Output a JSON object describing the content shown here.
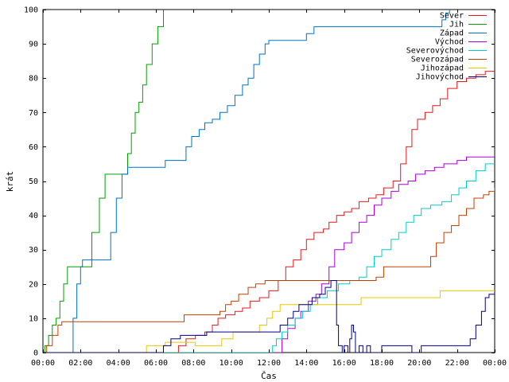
{
  "chart_data": {
    "type": "line",
    "xlabel": "Čas",
    "ylabel": "krát",
    "xlim": [
      0,
      24
    ],
    "ylim": [
      0,
      100
    ],
    "x_ticks": [
      {
        "value": 0,
        "label": "00:00"
      },
      {
        "value": 2,
        "label": "02:00"
      },
      {
        "value": 4,
        "label": "04:00"
      },
      {
        "value": 6,
        "label": "06:00"
      },
      {
        "value": 8,
        "label": "08:00"
      },
      {
        "value": 10,
        "label": "10:00"
      },
      {
        "value": 12,
        "label": "12:00"
      },
      {
        "value": 14,
        "label": "14:00"
      },
      {
        "value": 16,
        "label": "16:00"
      },
      {
        "value": 18,
        "label": "18:00"
      },
      {
        "value": 20,
        "label": "20:00"
      },
      {
        "value": 22,
        "label": "22:00"
      },
      {
        "value": 24,
        "label": "00:00"
      }
    ],
    "y_ticks": [
      0,
      10,
      20,
      30,
      40,
      50,
      60,
      70,
      80,
      90,
      100
    ],
    "grid": false,
    "legend_position": "top-right",
    "series": [
      {
        "name": "Sever",
        "color": "#e41a1c",
        "points": [
          [
            0,
            0
          ],
          [
            6.9,
            0
          ],
          [
            7.2,
            2
          ],
          [
            7.6,
            4
          ],
          [
            8.1,
            5
          ],
          [
            8.6,
            6
          ],
          [
            9.0,
            8
          ],
          [
            9.3,
            10
          ],
          [
            9.7,
            11
          ],
          [
            10.2,
            12
          ],
          [
            10.6,
            13
          ],
          [
            11.0,
            15
          ],
          [
            11.5,
            16
          ],
          [
            12.0,
            18
          ],
          [
            12.5,
            21
          ],
          [
            12.9,
            25
          ],
          [
            13.3,
            27
          ],
          [
            13.7,
            30
          ],
          [
            14.0,
            33
          ],
          [
            14.4,
            35
          ],
          [
            14.9,
            36
          ],
          [
            15.2,
            38
          ],
          [
            15.6,
            40
          ],
          [
            16.0,
            41
          ],
          [
            16.4,
            42
          ],
          [
            16.8,
            44
          ],
          [
            17.3,
            45
          ],
          [
            17.7,
            46
          ],
          [
            18.1,
            48
          ],
          [
            18.6,
            50
          ],
          [
            19.0,
            55
          ],
          [
            19.3,
            60
          ],
          [
            19.6,
            65
          ],
          [
            19.9,
            68
          ],
          [
            20.3,
            70
          ],
          [
            20.7,
            72
          ],
          [
            21.1,
            74
          ],
          [
            21.5,
            77
          ],
          [
            22.0,
            79
          ],
          [
            22.5,
            80
          ],
          [
            23.0,
            81
          ],
          [
            23.5,
            82
          ],
          [
            24.0,
            82
          ]
        ]
      },
      {
        "name": "Jih",
        "color": "#00a000",
        "points": [
          [
            0,
            0
          ],
          [
            0.1,
            2
          ],
          [
            0.3,
            5
          ],
          [
            0.5,
            8
          ],
          [
            0.7,
            10
          ],
          [
            0.9,
            15
          ],
          [
            1.1,
            20
          ],
          [
            1.3,
            25
          ],
          [
            2.2,
            25
          ],
          [
            2.6,
            35
          ],
          [
            3.0,
            45
          ],
          [
            3.3,
            52
          ],
          [
            4.3,
            52
          ],
          [
            4.5,
            58
          ],
          [
            4.7,
            64
          ],
          [
            4.9,
            70
          ],
          [
            5.1,
            73
          ],
          [
            5.3,
            78
          ],
          [
            5.5,
            84
          ],
          [
            5.8,
            90
          ],
          [
            6.1,
            95
          ],
          [
            6.4,
            100
          ]
        ]
      },
      {
        "name": "Západ",
        "color": "#0072c6",
        "points": [
          [
            0,
            0
          ],
          [
            1.4,
            0
          ],
          [
            1.6,
            10
          ],
          [
            1.8,
            20
          ],
          [
            2.0,
            25
          ],
          [
            2.1,
            27
          ],
          [
            3.4,
            27
          ],
          [
            3.6,
            35
          ],
          [
            3.9,
            45
          ],
          [
            4.2,
            52
          ],
          [
            4.5,
            54
          ],
          [
            6.2,
            54
          ],
          [
            6.5,
            56
          ],
          [
            7.3,
            56
          ],
          [
            7.6,
            60
          ],
          [
            7.9,
            63
          ],
          [
            8.3,
            65
          ],
          [
            8.6,
            67
          ],
          [
            9.0,
            68
          ],
          [
            9.4,
            70
          ],
          [
            9.8,
            72
          ],
          [
            10.2,
            75
          ],
          [
            10.6,
            78
          ],
          [
            10.9,
            80
          ],
          [
            11.2,
            84
          ],
          [
            11.5,
            87
          ],
          [
            11.8,
            90
          ],
          [
            12.0,
            91
          ],
          [
            13.7,
            91
          ],
          [
            14.0,
            93
          ],
          [
            14.4,
            95
          ],
          [
            21.0,
            95
          ],
          [
            21.2,
            97
          ],
          [
            21.4,
            99
          ],
          [
            21.6,
            100
          ]
        ]
      },
      {
        "name": "Východ",
        "color": "#aa00dd",
        "points": [
          [
            0,
            0
          ],
          [
            12.5,
            0
          ],
          [
            12.7,
            4
          ],
          [
            13.0,
            7
          ],
          [
            13.4,
            10
          ],
          [
            13.7,
            12
          ],
          [
            14.1,
            15
          ],
          [
            14.5,
            17
          ],
          [
            14.8,
            20
          ],
          [
            15.2,
            25
          ],
          [
            15.5,
            30
          ],
          [
            16.0,
            32
          ],
          [
            16.4,
            35
          ],
          [
            16.8,
            38
          ],
          [
            17.2,
            40
          ],
          [
            17.6,
            43
          ],
          [
            18.0,
            45
          ],
          [
            18.5,
            47
          ],
          [
            18.9,
            49
          ],
          [
            19.4,
            50
          ],
          [
            19.8,
            52
          ],
          [
            20.3,
            53
          ],
          [
            20.8,
            54
          ],
          [
            21.3,
            55
          ],
          [
            22.0,
            56
          ],
          [
            22.5,
            57
          ],
          [
            24.0,
            57
          ]
        ]
      },
      {
        "name": "Severovýchod",
        "color": "#00cccc",
        "points": [
          [
            0,
            0
          ],
          [
            12.0,
            0
          ],
          [
            12.2,
            2
          ],
          [
            12.4,
            4
          ],
          [
            12.7,
            6
          ],
          [
            13.0,
            8
          ],
          [
            13.4,
            10
          ],
          [
            13.8,
            12
          ],
          [
            14.2,
            14
          ],
          [
            14.6,
            16
          ],
          [
            15.1,
            18
          ],
          [
            15.7,
            20
          ],
          [
            16.3,
            21
          ],
          [
            16.8,
            22
          ],
          [
            17.2,
            25
          ],
          [
            17.6,
            28
          ],
          [
            18.0,
            30
          ],
          [
            18.5,
            33
          ],
          [
            18.9,
            35
          ],
          [
            19.3,
            38
          ],
          [
            19.7,
            40
          ],
          [
            20.1,
            42
          ],
          [
            20.6,
            43
          ],
          [
            21.2,
            44
          ],
          [
            21.7,
            46
          ],
          [
            22.1,
            48
          ],
          [
            22.5,
            50
          ],
          [
            23.0,
            53
          ],
          [
            23.5,
            55
          ],
          [
            24.0,
            55
          ]
        ]
      },
      {
        "name": "Severozápad",
        "color": "#c04000",
        "points": [
          [
            0,
            0
          ],
          [
            0.2,
            2
          ],
          [
            0.5,
            5
          ],
          [
            0.8,
            8
          ],
          [
            1.0,
            9
          ],
          [
            7.3,
            9
          ],
          [
            7.5,
            11
          ],
          [
            9.1,
            11
          ],
          [
            9.4,
            12
          ],
          [
            9.7,
            14
          ],
          [
            10.0,
            15
          ],
          [
            10.4,
            17
          ],
          [
            10.9,
            19
          ],
          [
            11.3,
            20
          ],
          [
            11.8,
            21
          ],
          [
            17.3,
            21
          ],
          [
            17.7,
            22
          ],
          [
            18.1,
            25
          ],
          [
            20.3,
            25
          ],
          [
            20.6,
            28
          ],
          [
            20.9,
            32
          ],
          [
            21.3,
            35
          ],
          [
            21.7,
            37
          ],
          [
            22.1,
            40
          ],
          [
            22.5,
            42
          ],
          [
            22.9,
            45
          ],
          [
            23.4,
            46
          ],
          [
            23.7,
            47
          ],
          [
            24.0,
            48
          ]
        ]
      },
      {
        "name": "Jihozápad",
        "color": "#e6c800",
        "points": [
          [
            0,
            0
          ],
          [
            5.4,
            0
          ],
          [
            5.5,
            2
          ],
          [
            6.3,
            2
          ],
          [
            6.5,
            3
          ],
          [
            7.9,
            3
          ],
          [
            8.1,
            2
          ],
          [
            9.3,
            2
          ],
          [
            9.5,
            4
          ],
          [
            9.9,
            4
          ],
          [
            10.1,
            6
          ],
          [
            11.2,
            6
          ],
          [
            11.5,
            8
          ],
          [
            11.9,
            10
          ],
          [
            12.2,
            12
          ],
          [
            12.6,
            14
          ],
          [
            16.6,
            14
          ],
          [
            16.9,
            16
          ],
          [
            20.8,
            16
          ],
          [
            21.1,
            18
          ],
          [
            24.0,
            18
          ]
        ]
      },
      {
        "name": "Jihovýchod",
        "color": "#000088",
        "points": [
          [
            0,
            0
          ],
          [
            6.2,
            0
          ],
          [
            6.4,
            2
          ],
          [
            6.8,
            4
          ],
          [
            7.3,
            5
          ],
          [
            8.4,
            5
          ],
          [
            8.7,
            6
          ],
          [
            12.3,
            6
          ],
          [
            12.6,
            8
          ],
          [
            13.0,
            10
          ],
          [
            13.3,
            12
          ],
          [
            13.6,
            14
          ],
          [
            14.0,
            14
          ],
          [
            14.3,
            16
          ],
          [
            14.7,
            17
          ],
          [
            15.0,
            19
          ],
          [
            15.3,
            21
          ],
          [
            15.5,
            21
          ],
          [
            15.6,
            8
          ],
          [
            15.7,
            2
          ],
          [
            15.9,
            0
          ],
          [
            16.0,
            2
          ],
          [
            16.2,
            0
          ],
          [
            16.3,
            4
          ],
          [
            16.4,
            8
          ],
          [
            16.5,
            6
          ],
          [
            16.6,
            0
          ],
          [
            16.8,
            2
          ],
          [
            17.0,
            0
          ],
          [
            17.2,
            2
          ],
          [
            17.4,
            0
          ],
          [
            17.9,
            0
          ],
          [
            18.0,
            2
          ],
          [
            19.5,
            2
          ],
          [
            19.6,
            0
          ],
          [
            20.0,
            0
          ],
          [
            20.1,
            2
          ],
          [
            22.4,
            2
          ],
          [
            22.7,
            4
          ],
          [
            23.0,
            8
          ],
          [
            23.3,
            12
          ],
          [
            23.5,
            16
          ],
          [
            23.7,
            17
          ],
          [
            24.0,
            17
          ]
        ]
      }
    ]
  }
}
